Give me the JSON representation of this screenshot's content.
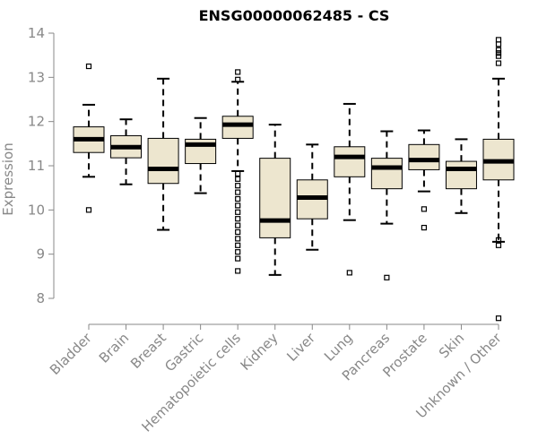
{
  "chart_data": {
    "type": "boxplot",
    "title": "ENSG00000062485 - CS",
    "xlabel": "",
    "ylabel": "Expression",
    "ylim": [
      7.5,
      14.0
    ],
    "yticks": [
      8,
      9,
      10,
      11,
      12,
      13,
      14
    ],
    "ytick_labels": [
      "8",
      "9",
      "10",
      "11",
      "12",
      "13",
      "14"
    ],
    "categories": [
      "Bladder",
      "Brain",
      "Breast",
      "Gastric",
      "Hematopoietic cells",
      "Kidney",
      "Liver",
      "Lung",
      "Pancreas",
      "Prostate",
      "Skin",
      "Unknown / Other"
    ],
    "boxes": [
      {
        "q1": 11.3,
        "median": 11.6,
        "q3": 11.88,
        "whisker_low": 10.75,
        "whisker_high": 12.38,
        "outliers": [
          10.0,
          13.25
        ]
      },
      {
        "q1": 11.18,
        "median": 11.42,
        "q3": 11.68,
        "whisker_low": 10.58,
        "whisker_high": 12.05,
        "outliers": []
      },
      {
        "q1": 10.6,
        "median": 10.93,
        "q3": 11.62,
        "whisker_low": 9.55,
        "whisker_high": 12.97,
        "outliers": []
      },
      {
        "q1": 11.05,
        "median": 11.48,
        "q3": 11.6,
        "whisker_low": 10.38,
        "whisker_high": 12.08,
        "outliers": []
      },
      {
        "q1": 11.62,
        "median": 11.93,
        "q3": 12.12,
        "whisker_low": 10.88,
        "whisker_high": 12.9,
        "outliers": [
          13.12,
          12.95,
          10.82,
          10.7,
          10.55,
          10.4,
          10.25,
          10.1,
          9.95,
          9.8,
          9.65,
          9.5,
          9.35,
          9.2,
          9.05,
          8.9,
          8.62
        ]
      },
      {
        "q1": 9.37,
        "median": 9.76,
        "q3": 11.17,
        "whisker_low": 8.53,
        "whisker_high": 11.93,
        "outliers": []
      },
      {
        "q1": 9.8,
        "median": 10.28,
        "q3": 10.68,
        "whisker_low": 9.1,
        "whisker_high": 11.48,
        "outliers": []
      },
      {
        "q1": 10.75,
        "median": 11.2,
        "q3": 11.43,
        "whisker_low": 9.77,
        "whisker_high": 12.4,
        "outliers": [
          8.58
        ]
      },
      {
        "q1": 10.48,
        "median": 10.96,
        "q3": 11.17,
        "whisker_low": 9.69,
        "whisker_high": 11.78,
        "outliers": [
          8.47
        ]
      },
      {
        "q1": 10.91,
        "median": 11.13,
        "q3": 11.48,
        "whisker_low": 10.42,
        "whisker_high": 11.8,
        "outliers": [
          10.02,
          9.6
        ]
      },
      {
        "q1": 10.48,
        "median": 10.93,
        "q3": 11.1,
        "whisker_low": 9.93,
        "whisker_high": 11.6,
        "outliers": []
      },
      {
        "q1": 10.68,
        "median": 11.1,
        "q3": 11.6,
        "whisker_low": 9.28,
        "whisker_high": 12.97,
        "outliers": [
          13.85,
          13.75,
          13.62,
          13.55,
          13.48,
          13.32,
          9.32,
          9.2,
          7.55
        ]
      }
    ],
    "colors": {
      "box_fill": "#ede6cf",
      "line": "#000000",
      "axis": "#888888",
      "text": "#888888"
    },
    "grid": false,
    "legend": "none"
  }
}
